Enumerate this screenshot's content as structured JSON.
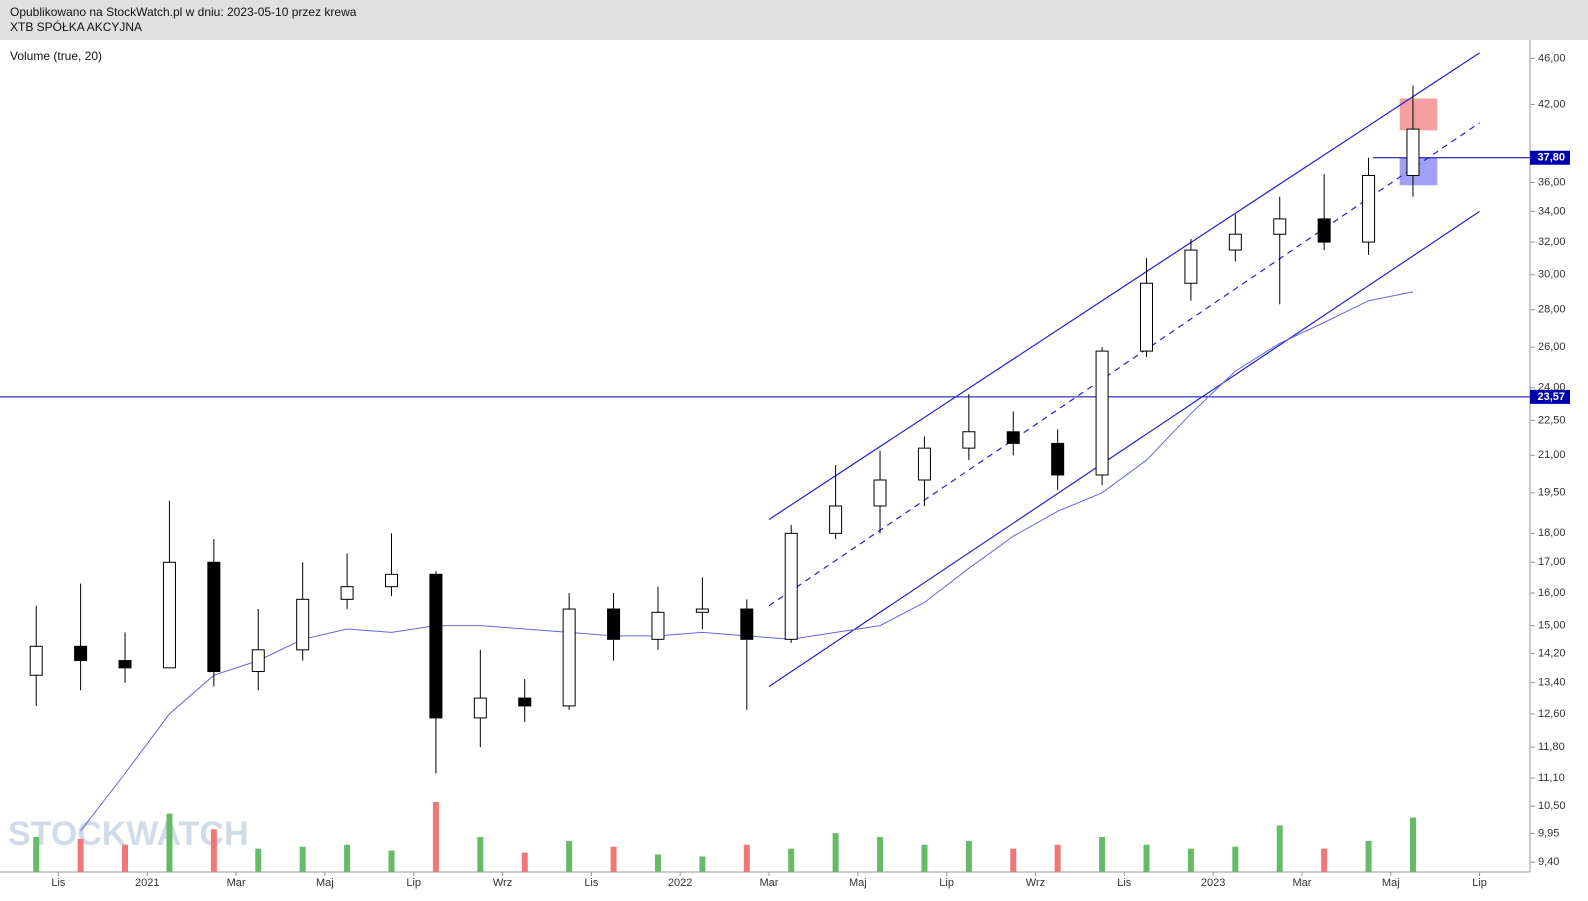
{
  "header": {
    "published": "Opublikowano na StockWatch.pl w dniu: 2023-05-10 przez krewa",
    "instrument": "XTB SPÓŁKA AKCYJNA"
  },
  "watermark": "STOCKWATCH",
  "chart_data": {
    "type": "candlestick",
    "log_scale": true,
    "x": [
      "2020-10",
      "2020-11",
      "2020-12",
      "2021-01",
      "2021-02",
      "2021-03",
      "2021-04",
      "2021-05",
      "2021-06",
      "2021-07",
      "2021-08",
      "2021-09",
      "2021-10",
      "2021-11",
      "2021-12",
      "2022-01",
      "2022-02",
      "2022-03",
      "2022-04",
      "2022-05",
      "2022-06",
      "2022-07",
      "2022-08",
      "2022-09",
      "2022-10",
      "2022-11",
      "2022-12",
      "2023-01",
      "2023-02",
      "2023-03",
      "2023-04",
      "2023-05"
    ],
    "open": [
      13.6,
      14.4,
      14.0,
      13.8,
      17.0,
      13.7,
      14.3,
      15.8,
      16.2,
      16.6,
      12.5,
      13.0,
      12.8,
      15.5,
      14.6,
      15.4,
      15.5,
      14.6,
      18.0,
      19.0,
      20.0,
      21.3,
      22.0,
      21.5,
      20.2,
      25.8,
      29.5,
      31.5,
      32.5,
      33.5,
      32.0,
      36.5
    ],
    "high": [
      15.6,
      16.3,
      14.8,
      19.2,
      17.8,
      15.5,
      17.0,
      17.3,
      18.0,
      16.7,
      14.3,
      13.5,
      16.0,
      16.0,
      16.2,
      16.5,
      15.8,
      18.3,
      20.6,
      21.2,
      21.8,
      23.7,
      22.9,
      22.1,
      26.0,
      31.0,
      32.2,
      33.8,
      35.0,
      36.6,
      37.8,
      43.6
    ],
    "low": [
      12.8,
      13.2,
      13.4,
      13.8,
      13.3,
      13.2,
      14.0,
      15.5,
      15.9,
      11.2,
      11.8,
      12.4,
      12.7,
      14.0,
      14.3,
      14.9,
      12.7,
      14.5,
      17.8,
      18.0,
      19.0,
      20.8,
      21.0,
      19.6,
      19.8,
      25.5,
      28.5,
      30.8,
      28.3,
      31.5,
      31.2,
      35.0
    ],
    "close": [
      14.4,
      14.0,
      13.8,
      17.0,
      13.7,
      14.3,
      15.8,
      16.2,
      16.6,
      12.5,
      13.0,
      12.8,
      15.5,
      14.6,
      15.4,
      15.5,
      14.6,
      18.0,
      19.0,
      20.0,
      21.3,
      22.0,
      21.5,
      20.2,
      25.8,
      29.5,
      31.5,
      32.5,
      33.5,
      32.0,
      36.5,
      40.0
    ],
    "ma": {
      "color": "#6666dd",
      "values": [
        null,
        10.0,
        11.2,
        12.6,
        13.6,
        14.0,
        14.6,
        14.9,
        14.8,
        15.0,
        15.0,
        14.9,
        14.8,
        14.7,
        14.7,
        14.8,
        14.7,
        14.6,
        14.8,
        15.0,
        15.7,
        16.8,
        17.9,
        18.8,
        19.5,
        20.8,
        22.8,
        24.8,
        26.2,
        27.3,
        28.5,
        29.0
      ]
    },
    "volume": {
      "label": "Volume (true, 20)",
      "up_color": "#66bb66",
      "down_color": "#ee7777",
      "values": [
        900,
        850,
        700,
        1500,
        1100,
        600,
        650,
        700,
        550,
        1800,
        900,
        500,
        800,
        650,
        450,
        400,
        700,
        600,
        1000,
        900,
        700,
        800,
        600,
        700,
        900,
        700,
        600,
        650,
        1200,
        600,
        800,
        1400
      ]
    },
    "channels": [
      {
        "color": "#2222cc",
        "dash": false,
        "from": "2022-03",
        "to": "2023-07",
        "start": 18.5,
        "end": 46.5
      },
      {
        "color": "#2222cc",
        "dash": true,
        "from": "2022-03",
        "to": "2023-07",
        "start": 15.6,
        "end": 40.5
      },
      {
        "color": "#2222cc",
        "dash": false,
        "from": "2022-03",
        "to": "2023-07",
        "start": 13.3,
        "end": 34.0
      }
    ],
    "zones": [
      {
        "color": "#f5a0a0",
        "from": "2023-05",
        "to": "2023-06",
        "low": 39.9,
        "high": 42.5
      },
      {
        "color": "#a0a0f5",
        "from": "2023-05",
        "to": "2023-06",
        "low": 35.8,
        "high": 37.8
      }
    ],
    "levels": [
      {
        "value": 37.8,
        "label": "37,80",
        "color": "#0000aa",
        "start": "2023-04"
      },
      {
        "value": 23.57,
        "label": "23,57",
        "color": "#0000aa"
      }
    ],
    "xlim": [
      "2020-10",
      "2023-08"
    ],
    "xticks": [
      {
        "value": "2020-11",
        "label": "Lis"
      },
      {
        "value": "2021-01",
        "label": "2021"
      },
      {
        "value": "2021-03",
        "label": "Mar"
      },
      {
        "value": "2021-05",
        "label": "Maj"
      },
      {
        "value": "2021-07",
        "label": "Lip"
      },
      {
        "value": "2021-09",
        "label": "Wrz"
      },
      {
        "value": "2021-11",
        "label": "Lis"
      },
      {
        "value": "2022-01",
        "label": "2022"
      },
      {
        "value": "2022-03",
        "label": "Mar"
      },
      {
        "value": "2022-05",
        "label": "Maj"
      },
      {
        "value": "2022-07",
        "label": "Lip"
      },
      {
        "value": "2022-09",
        "label": "Wrz"
      },
      {
        "value": "2022-11",
        "label": "Lis"
      },
      {
        "value": "2023-01",
        "label": "2023"
      },
      {
        "value": "2023-03",
        "label": "Mar"
      },
      {
        "value": "2023-05",
        "label": "Maj"
      },
      {
        "value": "2023-07",
        "label": "Lip"
      }
    ],
    "ylim": [
      9.22,
      47.7
    ],
    "yticks": [
      {
        "value": 46,
        "label": "46,00"
      },
      {
        "value": 42,
        "label": "42,00"
      },
      {
        "value": 36,
        "label": "36,00"
      },
      {
        "value": 34,
        "label": "34,00"
      },
      {
        "value": 32,
        "label": "32,00"
      },
      {
        "value": 30,
        "label": "30,00"
      },
      {
        "value": 28,
        "label": "28,00"
      },
      {
        "value": 26,
        "label": "26,00"
      },
      {
        "value": 24,
        "label": "24,00"
      },
      {
        "value": 22.5,
        "label": "22,50"
      },
      {
        "value": 21,
        "label": "21,00"
      },
      {
        "value": 19.5,
        "label": "19,50"
      },
      {
        "value": 18,
        "label": "18,00"
      },
      {
        "value": 17,
        "label": "17,00"
      },
      {
        "value": 16,
        "label": "16,00"
      },
      {
        "value": 15,
        "label": "15,00"
      },
      {
        "value": 14.2,
        "label": "14,20"
      },
      {
        "value": 13.4,
        "label": "13,40"
      },
      {
        "value": 12.6,
        "label": "12,60"
      },
      {
        "value": 11.8,
        "label": "11,80"
      },
      {
        "value": 11.1,
        "label": "11,10"
      },
      {
        "value": 10.5,
        "label": "10,50"
      },
      {
        "value": 9.95,
        "label": "9,95"
      },
      {
        "value": 9.4,
        "label": "9,40"
      }
    ]
  }
}
